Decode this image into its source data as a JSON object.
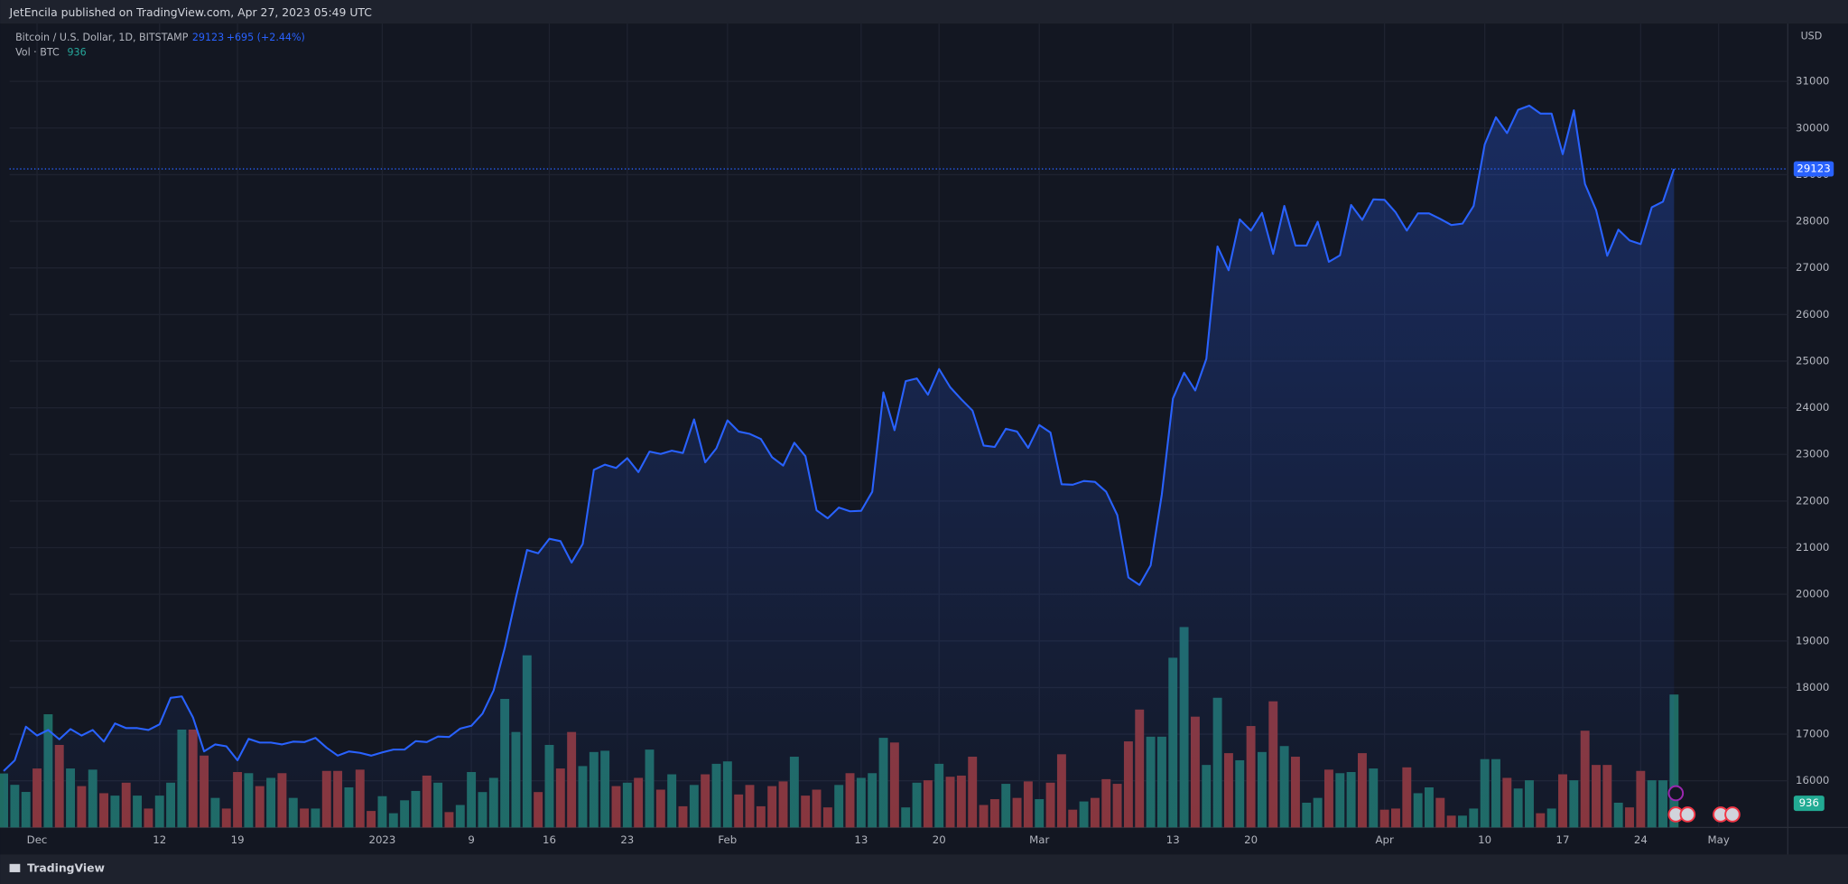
{
  "header": {
    "title": "JetEncila published on TradingView.com, Apr 27, 2023 05:49 UTC"
  },
  "footer": {
    "brand": "TradingView"
  },
  "chart_data": {
    "type": "area",
    "change": "+695 (+2.44%)",
    "currency": "USD",
    "categories": [
      null,
      null,
      null,
      "Dec",
      null,
      null,
      null,
      null,
      null,
      null,
      null,
      null,
      null,
      null,
      "12",
      null,
      null,
      null,
      null,
      null,
      null,
      "19",
      null,
      null,
      null,
      null,
      null,
      null,
      null,
      null,
      null,
      null,
      null,
      null,
      "2023",
      null,
      null,
      null,
      null,
      null,
      null,
      null,
      "9",
      null,
      null,
      null,
      null,
      null,
      null,
      "16",
      null,
      null,
      null,
      null,
      null,
      null,
      "23",
      null,
      null,
      null,
      null,
      null,
      null,
      null,
      null,
      "Feb",
      null,
      null,
      null,
      null,
      null,
      null,
      null,
      null,
      null,
      null,
      null,
      "13",
      null,
      null,
      null,
      null,
      null,
      null,
      "20",
      null,
      null,
      null,
      null,
      null,
      null,
      null,
      null,
      "Mar",
      null,
      null,
      null,
      null,
      null,
      null,
      null,
      null,
      null,
      null,
      null,
      "13",
      null,
      null,
      null,
      null,
      null,
      null,
      "20",
      null,
      null,
      null,
      null,
      null,
      null,
      null,
      null,
      null,
      null,
      null,
      "Apr",
      null,
      null,
      null,
      null,
      null,
      null,
      null,
      null,
      "10",
      null,
      null,
      null,
      null,
      null,
      null,
      "17",
      null,
      null,
      null,
      null,
      null,
      null,
      "24",
      null,
      null,
      null,
      null,
      null,
      null,
      "May",
      null,
      null,
      null,
      null,
      null,
      null
    ],
    "series": [
      {
        "name": "Bitcoin / U.S. Dollar, 1D, BITSTAMP",
        "color": "#2962ff",
        "values": [
          16210,
          16440,
          17160,
          16970,
          17090,
          16890,
          17110,
          16970,
          17090,
          16840,
          17230,
          17130,
          17130,
          17090,
          17210,
          17780,
          17810,
          17360,
          16630,
          16780,
          16740,
          16440,
          16900,
          16820,
          16820,
          16780,
          16840,
          16830,
          16920,
          16710,
          16540,
          16630,
          16600,
          16540,
          16610,
          16670,
          16670,
          16850,
          16830,
          16950,
          16940,
          17120,
          17180,
          17440,
          17940,
          18850,
          19930,
          20950,
          20880,
          21190,
          21140,
          20680,
          21080,
          22670,
          22780,
          22710,
          22920,
          22620,
          23060,
          23010,
          23080,
          23030,
          23750,
          22830,
          23130,
          23730,
          23490,
          23440,
          23330,
          22940,
          22760,
          23250,
          22960,
          21800,
          21630,
          21860,
          21780,
          21790,
          22200,
          24330,
          23520,
          24570,
          24630,
          24280,
          24830,
          24440,
          24180,
          23940,
          23190,
          23160,
          23550,
          23490,
          23140,
          23630,
          23470,
          22360,
          22350,
          22430,
          22410,
          22200,
          21700,
          20360,
          20200,
          20620,
          22140,
          24200,
          24750,
          24370,
          25050,
          27460,
          26950,
          28040,
          27800,
          28180,
          27300,
          28330,
          27480,
          27480,
          27990,
          27130,
          27270,
          28350,
          28030,
          28470,
          28460,
          28190,
          27800,
          28170,
          28170,
          28050,
          27920,
          27950,
          28330,
          29650,
          30230,
          29890,
          30390,
          30480,
          30310,
          30310,
          29440,
          30380,
          28800,
          28240,
          27260,
          27820,
          27590,
          27510,
          28300,
          28420,
          29123,
          null,
          null,
          null,
          null,
          null,
          null,
          null,
          null,
          null,
          null
        ]
      },
      {
        "name": "Vol · BTC",
        "axis": "volume",
        "up_color": "#1f6b63",
        "down_color": "#8a3538",
        "values": [
          380,
          300,
          250,
          415,
          797,
          581,
          415,
          291,
          407,
          241,
          224,
          315,
          224,
          133,
          224,
          315,
          689,
          689,
          506,
          208,
          133,
          390,
          382,
          291,
          349,
          382,
          208,
          133,
          133,
          398,
          398,
          282,
          407,
          116,
          220,
          100,
          191,
          257,
          365,
          315,
          108,
          158,
          390,
          249,
          349,
          905,
          672,
          1212,
          249,
          581,
          415,
          672,
          432,
          531,
          540,
          291,
          315,
          349,
          548,
          266,
          374,
          149,
          299,
          374,
          448,
          465,
          232,
          299,
          149,
          291,
          324,
          498,
          224,
          266,
          141,
          299,
          382,
          349,
          382,
          631,
          598,
          141,
          315,
          332,
          448,
          357,
          365,
          498,
          158,
          199,
          307,
          208,
          324,
          199,
          315,
          515,
          125,
          183,
          208,
          340,
          307,
          606,
          830,
          639,
          639,
          1195,
          1411,
          780,
          440,
          913,
          523,
          473,
          714,
          531,
          888,
          573,
          498,
          174,
          208,
          407,
          382,
          390,
          523,
          415,
          125,
          133,
          423,
          241,
          282,
          208,
          83,
          83,
          133,
          481,
          481,
          349,
          274,
          332,
          100,
          133,
          374,
          332,
          681,
          440,
          440,
          174,
          141,
          398,
          332,
          332,
          936,
          null,
          null,
          null,
          null,
          null,
          null,
          null,
          null,
          null,
          null
        ]
      }
    ],
    "ylim": [
      15000,
      32240
    ],
    "yticks": [
      16000,
      17000,
      18000,
      19000,
      20000,
      21000,
      22000,
      23000,
      24000,
      25000,
      26000,
      27000,
      28000,
      29000,
      30000,
      31000
    ],
    "grid": true,
    "last_price_line": true
  }
}
